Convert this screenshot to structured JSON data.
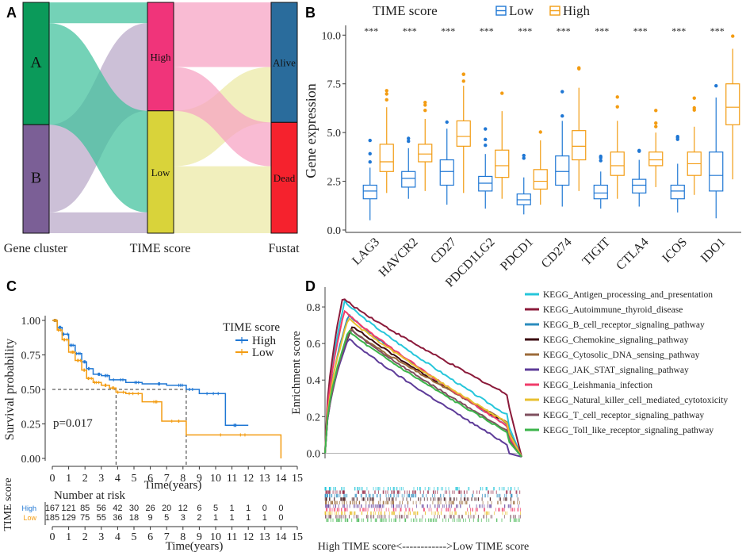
{
  "panels": [
    "A",
    "B",
    "C",
    "D"
  ],
  "chart_data": [
    {
      "panel": "A",
      "type": "sankey",
      "axes": [
        "Gene cluster",
        "TIME score",
        "Fustat"
      ],
      "nodes": {
        "gene_cluster": [
          {
            "label": "A",
            "color": "#0b9a5a"
          },
          {
            "label": "B",
            "color": "#7b5f96"
          }
        ],
        "time_score": [
          {
            "label": "High",
            "color": "#f0347a"
          },
          {
            "label": "Low",
            "color": "#d9d33a"
          }
        ],
        "fustat": [
          {
            "label": "Alive",
            "color": "#2a6c9c"
          },
          {
            "label": "Dead",
            "color": "#f5222d"
          }
        ]
      },
      "flows": [
        {
          "from": "A",
          "to": "High",
          "share": 0.09
        },
        {
          "from": "A",
          "to": "Low",
          "share": 0.44
        },
        {
          "from": "B",
          "to": "High",
          "share": 0.38
        },
        {
          "from": "B",
          "to": "Low",
          "share": 0.09
        },
        {
          "from": "High",
          "to": "Alive",
          "share": 0.28
        },
        {
          "from": "High",
          "to": "Dead",
          "share": 0.19
        },
        {
          "from": "Low",
          "to": "Alive",
          "share": 0.24
        },
        {
          "from": "Low",
          "to": "Dead",
          "share": 0.29
        }
      ]
    },
    {
      "panel": "B",
      "type": "box",
      "legend_title": "TIME score",
      "legend": [
        {
          "name": "Low",
          "color": "#1f77d4"
        },
        {
          "name": "High",
          "color": "#f39c12"
        }
      ],
      "ylabel": "Gene expression",
      "yticks": [
        "0.0",
        "2.5",
        "5.0",
        "7.5",
        "10.0"
      ],
      "ylim": [
        0,
        10.5
      ],
      "significance": "***",
      "categories": [
        "LAG3",
        "HAVCR2",
        "CD27",
        "PDCD1LG2",
        "PDCD1",
        "CD274",
        "TIGIT",
        "CTLA4",
        "ICOS",
        "IDO1"
      ],
      "series": [
        {
          "name": "Low",
          "boxes": [
            [
              0.5,
              1.6,
              2.0,
              2.3,
              3.2
            ],
            [
              1.6,
              2.2,
              2.65,
              3.0,
              4.2
            ],
            [
              1.3,
              2.3,
              3.0,
              3.6,
              5.2
            ],
            [
              1.1,
              2.0,
              2.4,
              2.75,
              3.9
            ],
            [
              0.8,
              1.3,
              1.55,
              1.85,
              2.7
            ],
            [
              1.2,
              2.3,
              3.0,
              3.8,
              5.6
            ],
            [
              1.1,
              1.6,
              1.9,
              2.3,
              3.0
            ],
            [
              1.2,
              1.9,
              2.3,
              2.6,
              3.6
            ],
            [
              0.9,
              1.6,
              2.0,
              2.3,
              3.4
            ],
            [
              0.6,
              2.0,
              2.8,
              4.0,
              6.8
            ]
          ]
        },
        {
          "name": "High",
          "boxes": [
            [
              1.9,
              3.0,
              3.5,
              4.4,
              6.3
            ],
            [
              2.0,
              3.5,
              3.9,
              4.4,
              5.7
            ],
            [
              1.9,
              4.3,
              4.8,
              5.6,
              7.4
            ],
            [
              1.6,
              2.7,
              3.3,
              4.1,
              6.1
            ],
            [
              1.3,
              2.1,
              2.5,
              3.1,
              4.6
            ],
            [
              2.0,
              3.6,
              4.3,
              5.1,
              7.3
            ],
            [
              1.6,
              2.8,
              3.3,
              4.0,
              5.6
            ],
            [
              2.2,
              3.3,
              3.6,
              4.0,
              5.0
            ],
            [
              1.8,
              2.8,
              3.4,
              4.0,
              5.3
            ],
            [
              2.6,
              5.4,
              6.3,
              7.5,
              9.3
            ]
          ]
        }
      ]
    },
    {
      "panel": "C",
      "type": "line",
      "subtype": "kaplan-meier",
      "legend_title": "TIME score",
      "xlabel": "Time(years)",
      "ylabel": "Survival probability",
      "pvalue": "p=0.017",
      "xlim": [
        0,
        15
      ],
      "ylim": [
        0,
        1
      ],
      "xticks": [
        "0",
        "1",
        "2",
        "3",
        "4",
        "5",
        "6",
        "7",
        "8",
        "9",
        "10",
        "11",
        "12",
        "13",
        "14",
        "15"
      ],
      "yticks": [
        "0.00",
        "0.25",
        "0.50",
        "0.75",
        "1.00"
      ],
      "median_survival": {
        "Low": 3.9,
        "High": 8.2
      },
      "series": [
        {
          "name": "High",
          "color": "#1f77d4",
          "x": [
            0,
            0.3,
            0.6,
            1.0,
            1.4,
            1.8,
            2.1,
            2.5,
            3.0,
            3.5,
            4.5,
            5.5,
            7.0,
            8.2,
            9.0,
            10.6,
            12.0
          ],
          "y": [
            1.0,
            0.95,
            0.9,
            0.82,
            0.76,
            0.7,
            0.65,
            0.61,
            0.6,
            0.57,
            0.55,
            0.54,
            0.53,
            0.5,
            0.47,
            0.24,
            0.24
          ]
        },
        {
          "name": "Low",
          "color": "#f39c12",
          "x": [
            0,
            0.3,
            0.6,
            1.0,
            1.4,
            1.8,
            2.1,
            2.5,
            3.0,
            3.5,
            3.9,
            4.5,
            5.5,
            6.7,
            8.2,
            14.0
          ],
          "y": [
            1.0,
            0.93,
            0.86,
            0.77,
            0.71,
            0.64,
            0.58,
            0.55,
            0.53,
            0.51,
            0.48,
            0.47,
            0.41,
            0.27,
            0.17,
            0.0
          ]
        }
      ],
      "risk_table": {
        "title": "Number at risk",
        "ylabel": "TIME score",
        "xlabel": "Time(years)",
        "rows": [
          {
            "name": "High",
            "values": [
              "167",
              "121",
              "85",
              "56",
              "42",
              "30",
              "26",
              "20",
              "12",
              "6",
              "5",
              "1",
              "1",
              "0",
              "0"
            ]
          },
          {
            "name": "Low",
            "values": [
              "185",
              "129",
              "75",
              "55",
              "36",
              "18",
              "9",
              "5",
              "3",
              "2",
              "1",
              "1",
              "1",
              "1",
              "0"
            ]
          }
        ]
      }
    },
    {
      "panel": "D",
      "type": "line",
      "subtype": "gsea",
      "ylabel": "Enrichment score",
      "yticks": [
        "0.0",
        "0.2",
        "0.4",
        "0.6",
        "0.8"
      ],
      "ylim": [
        -0.02,
        0.9
      ],
      "xlabel": "High TIME score<------------>Low TIME score",
      "series": [
        {
          "name": "KEGG_Antigen_processing_and_presentation",
          "color": "#26c6da",
          "peak": 0.83,
          "peak_pos": 0.1,
          "end": 0.16
        },
        {
          "name": "KEGG_Autoimmune_thyroid_disease",
          "color": "#8b1a3a",
          "peak": 0.85,
          "peak_pos": 0.09,
          "end": 0.28
        },
        {
          "name": "KEGG_B_cell_receptor_signaling_pathway",
          "color": "#2b8cbe",
          "peak": 0.76,
          "peak_pos": 0.12,
          "end": 0.1
        },
        {
          "name": "KEGG_Chemokine_signaling_pathway",
          "color": "#3b0a10",
          "peak": 0.7,
          "peak_pos": 0.14,
          "end": 0.12
        },
        {
          "name": "KEGG_Cytosolic_DNA_sensing_pathway",
          "color": "#9c6b3a",
          "peak": 0.68,
          "peak_pos": 0.13,
          "end": 0.13
        },
        {
          "name": "KEGG_JAK_STAT_signaling_pathway",
          "color": "#5e3c99",
          "peak": 0.63,
          "peak_pos": 0.12,
          "end": 0.0
        },
        {
          "name": "KEGG_Leishmania_infection",
          "color": "#f03b6a",
          "peak": 0.78,
          "peak_pos": 0.1,
          "end": 0.1
        },
        {
          "name": "KEGG_Natural_killer_cell_mediated_cytotoxicity",
          "color": "#e8c030",
          "peak": 0.74,
          "peak_pos": 0.12,
          "end": 0.12
        },
        {
          "name": "KEGG_T_cell_receptor_signaling_pathway",
          "color": "#7f4f5f",
          "peak": 0.68,
          "peak_pos": 0.13,
          "end": 0.08
        },
        {
          "name": "KEGG_Toll_like_receptor_signaling_pathway",
          "color": "#3cb44b",
          "peak": 0.67,
          "peak_pos": 0.12,
          "end": 0.07
        }
      ]
    }
  ]
}
